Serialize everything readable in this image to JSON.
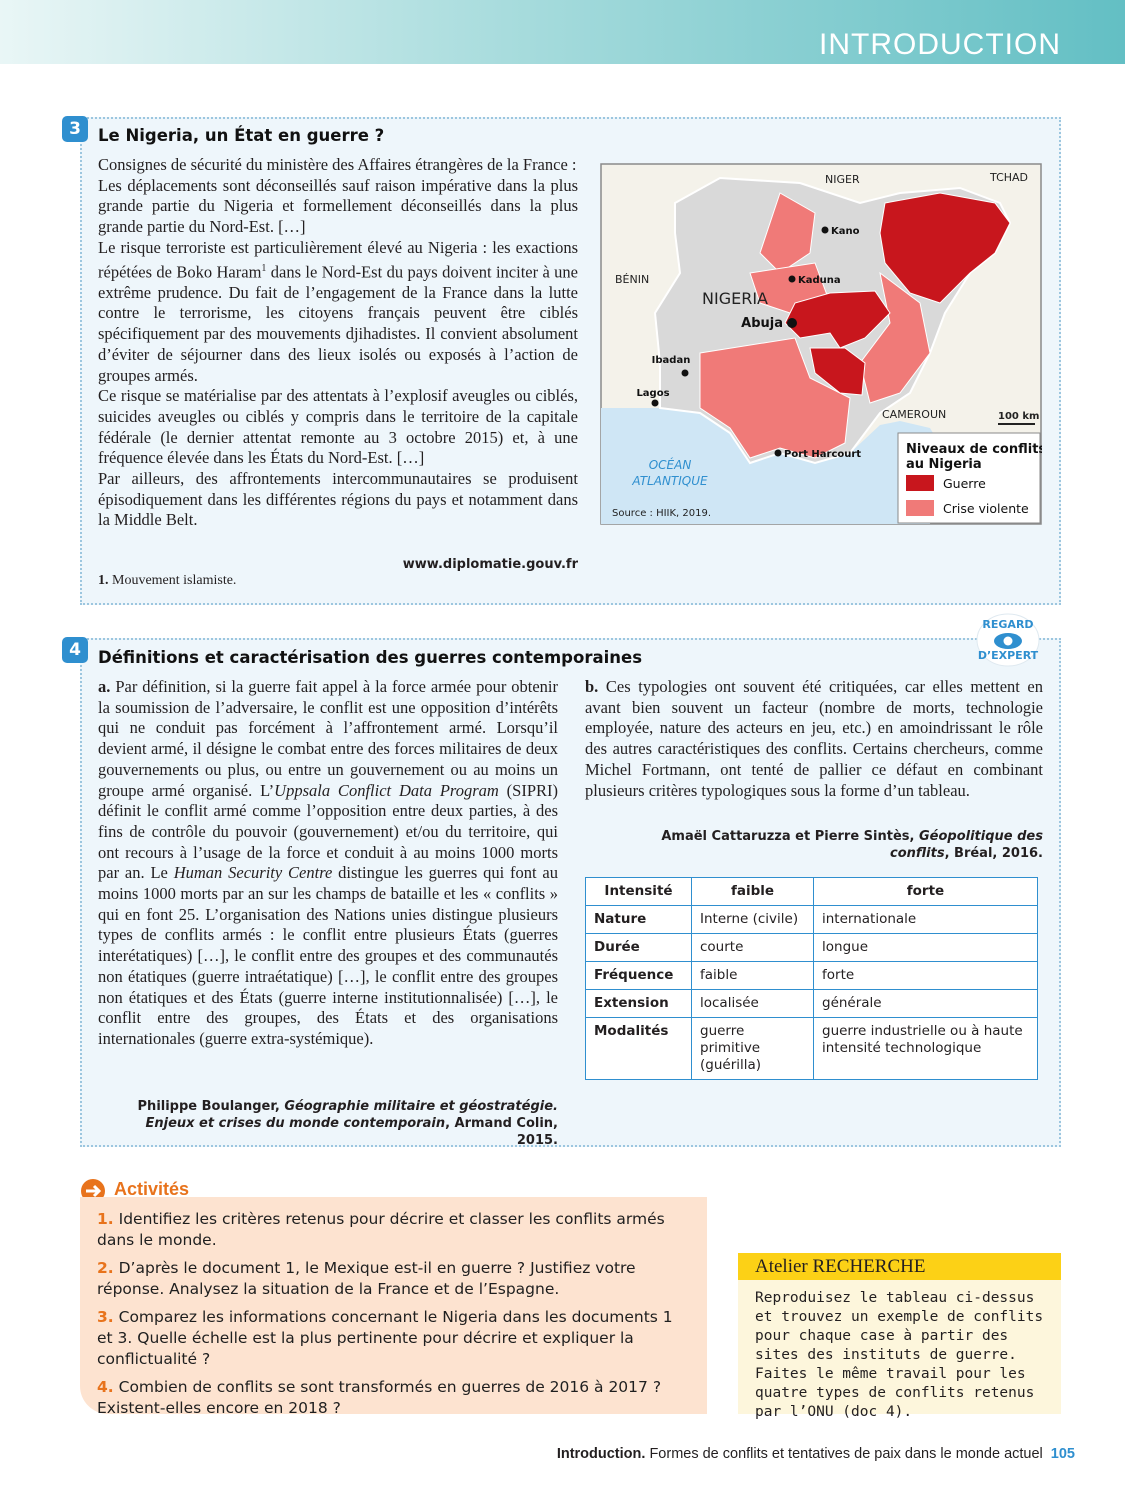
{
  "header": {
    "section": "INTRODUCTION"
  },
  "doc3": {
    "number": "3",
    "title": "Le Nigeria, un État en guerre ?",
    "paragraphs": [
      "Consignes de sécurité du ministère des Affaires étrangères de la France :",
      "Les déplacements sont déconseillés sauf raison impérative dans la plus grande partie du Nigeria et formellement déconseillés dans la plus grande partie du Nord-Est. […]",
      [
        "Le risque terroriste est particulièrement élevé au Nigeria : les exactions répétées de Boko Haram",
        "1",
        " dans le Nord-Est du pays doivent inciter à une extrême prudence. Du fait de l’engagement de la France dans la lutte contre le terrorisme, les citoyens français peuvent être ciblés spécifiquement par des mouvements djihadistes. Il convient absolument d’éviter de séjourner dans des lieux isolés ou exposés à l’action de groupes armés."
      ],
      "Ce risque se matérialise par des attentats à l’explosif aveugles ou ciblés, suicides aveugles ou ciblés y compris dans le territoire de la capitale fédérale (le dernier attentat remonte au 3 octobre 2015) et, à une fréquence élevée dans les États du Nord-Est. […]",
      "Par ailleurs, des affrontements intercommunautaires se produisent épisodiquement dans les différentes régions du pays et notamment dans la Middle Belt."
    ],
    "source": "www.diplomatie.gouv.fr",
    "footnote": {
      "number": "1.",
      "text": "Mouvement islamiste."
    }
  },
  "map": {
    "labels": {
      "niger": "NIGER",
      "tchad": "TCHAD",
      "benin": "BÉNIN",
      "nigeria": "NIGERIA",
      "cameroun": "CAMEROUN",
      "ocean": [
        "OCÉAN",
        "ATLANTIQUE"
      ]
    },
    "cities": [
      "Kano",
      "Kaduna",
      "Abuja",
      "Ibadan",
      "Lagos",
      "Port Harcourt"
    ],
    "scale": "100 km",
    "legend": {
      "title": [
        "Niveaux de conflits",
        "au Nigeria"
      ],
      "items": [
        {
          "label": "Guerre",
          "color": "#c8161d"
        },
        {
          "label": "Crise violente",
          "color": "#f07a78"
        }
      ]
    },
    "source": "Source : HIIK, 2019."
  },
  "doc4": {
    "number": "4",
    "badge": [
      "REGARD",
      "D’EXPERT"
    ],
    "title": "Définitions et caractérisation des guerres contemporaines",
    "a": {
      "label": "a.",
      "text": [
        "Par définition, si la guerre fait appel à la force armée pour obtenir la soumission de l’adversaire, le conflit est une opposition d’intérêts qui ne conduit pas forcément à l’affrontement armé. Lorsqu’il devient armé, il désigne le combat entre des forces militaires de deux gouvernements ou plus, ou entre un gouvernement ou au moins un groupe armé organisé. L’",
        "Uppsala Conflict Data Program",
        " (SIPRI) définit le conflit armé comme l’opposition entre deux parties, à des fins de contrôle du pouvoir (gouvernement) et/ou du territoire, qui ont recours à l’usage de la force et conduit à au moins 1000 morts par an. Le ",
        "Human Security Centre",
        " distingue les guerres qui font au moins 1000 morts par an sur les champs de bataille et les « conflits » qui en font 25. L’organisation des Nations unies distingue plusieurs types de conflits armés : le conflit entre plusieurs États (guerres interétatiques) […], le conflit entre des groupes et des communautés non étatiques (guerre intraétatique) […], le conflit entre des groupes non étatiques et des États (guerre interne institutionnalisée) […], le conflit entre des groupes, des États et des organisations internationales (guerre extra-systémique)."
      ],
      "source": [
        "Philippe Boulanger, ",
        "Géographie militaire et géostratégie. Enjeux et crises du monde contemporain",
        ", Armand Colin, 2015."
      ]
    },
    "b": {
      "label": "b.",
      "text": "Ces typologies ont souvent été critiquées, car elles mettent en avant bien souvent un facteur (nombre de morts, technologie employée, nature des acteurs en jeu, etc.) en amoindrissant le rôle des autres caractéristiques des conflits. Certains chercheurs, comme Michel Fortmann, ont tenté de pallier ce défaut en combinant plusieurs critères typologiques sous la forme d’un tableau.",
      "source": [
        "Amaël Cattaruzza et Pierre Sintès, ",
        "Géopolitique des conflits",
        ", Bréal, 2016."
      ]
    },
    "table": {
      "header": [
        "Intensité",
        "faible",
        "forte"
      ],
      "rows": [
        [
          "Nature",
          "Interne (civile)",
          "internationale"
        ],
        [
          "Durée",
          "courte",
          "longue"
        ],
        [
          "Fréquence",
          "faible",
          "forte"
        ],
        [
          "Extension",
          "localisée",
          "générale"
        ],
        [
          "Modalités",
          "guerre primitive (guérilla)",
          "guerre industrielle ou à haute intensité technologique"
        ]
      ]
    }
  },
  "activities": {
    "title": "Activités",
    "items": [
      {
        "number": "1.",
        "text": "Identifiez les critères retenus pour décrire et classer les conflits armés dans le monde."
      },
      {
        "number": "2.",
        "text": "D’après le document 1, le Mexique est-il en guerre ? Justifiez votre réponse. Analysez la situation de la France et de l’Espagne."
      },
      {
        "number": "3.",
        "text": "Comparez les informations concernant le Nigeria dans les documents 1 et 3. Quelle échelle est la plus pertinente pour décrire et expliquer la conflictualité ?"
      },
      {
        "number": "4.",
        "text": "Combien de conflits se sont transformés en guerres de 2016 à 2017 ? Existent-elles encore en 2018 ?"
      }
    ]
  },
  "atelier": {
    "title": "Atelier RECHERCHE",
    "text": "Reproduisez le tableau ci-dessus et trouvez un exemple de conflits pour chaque case à partir des sites des instituts de guerre. Faites le même travail pour les quatre types de conflits retenus par l’ONU (doc 4)."
  },
  "footer": {
    "part": "Introduction.",
    "title": "Formes de conflits et tentatives de paix dans le monde actuel",
    "page": "105"
  }
}
